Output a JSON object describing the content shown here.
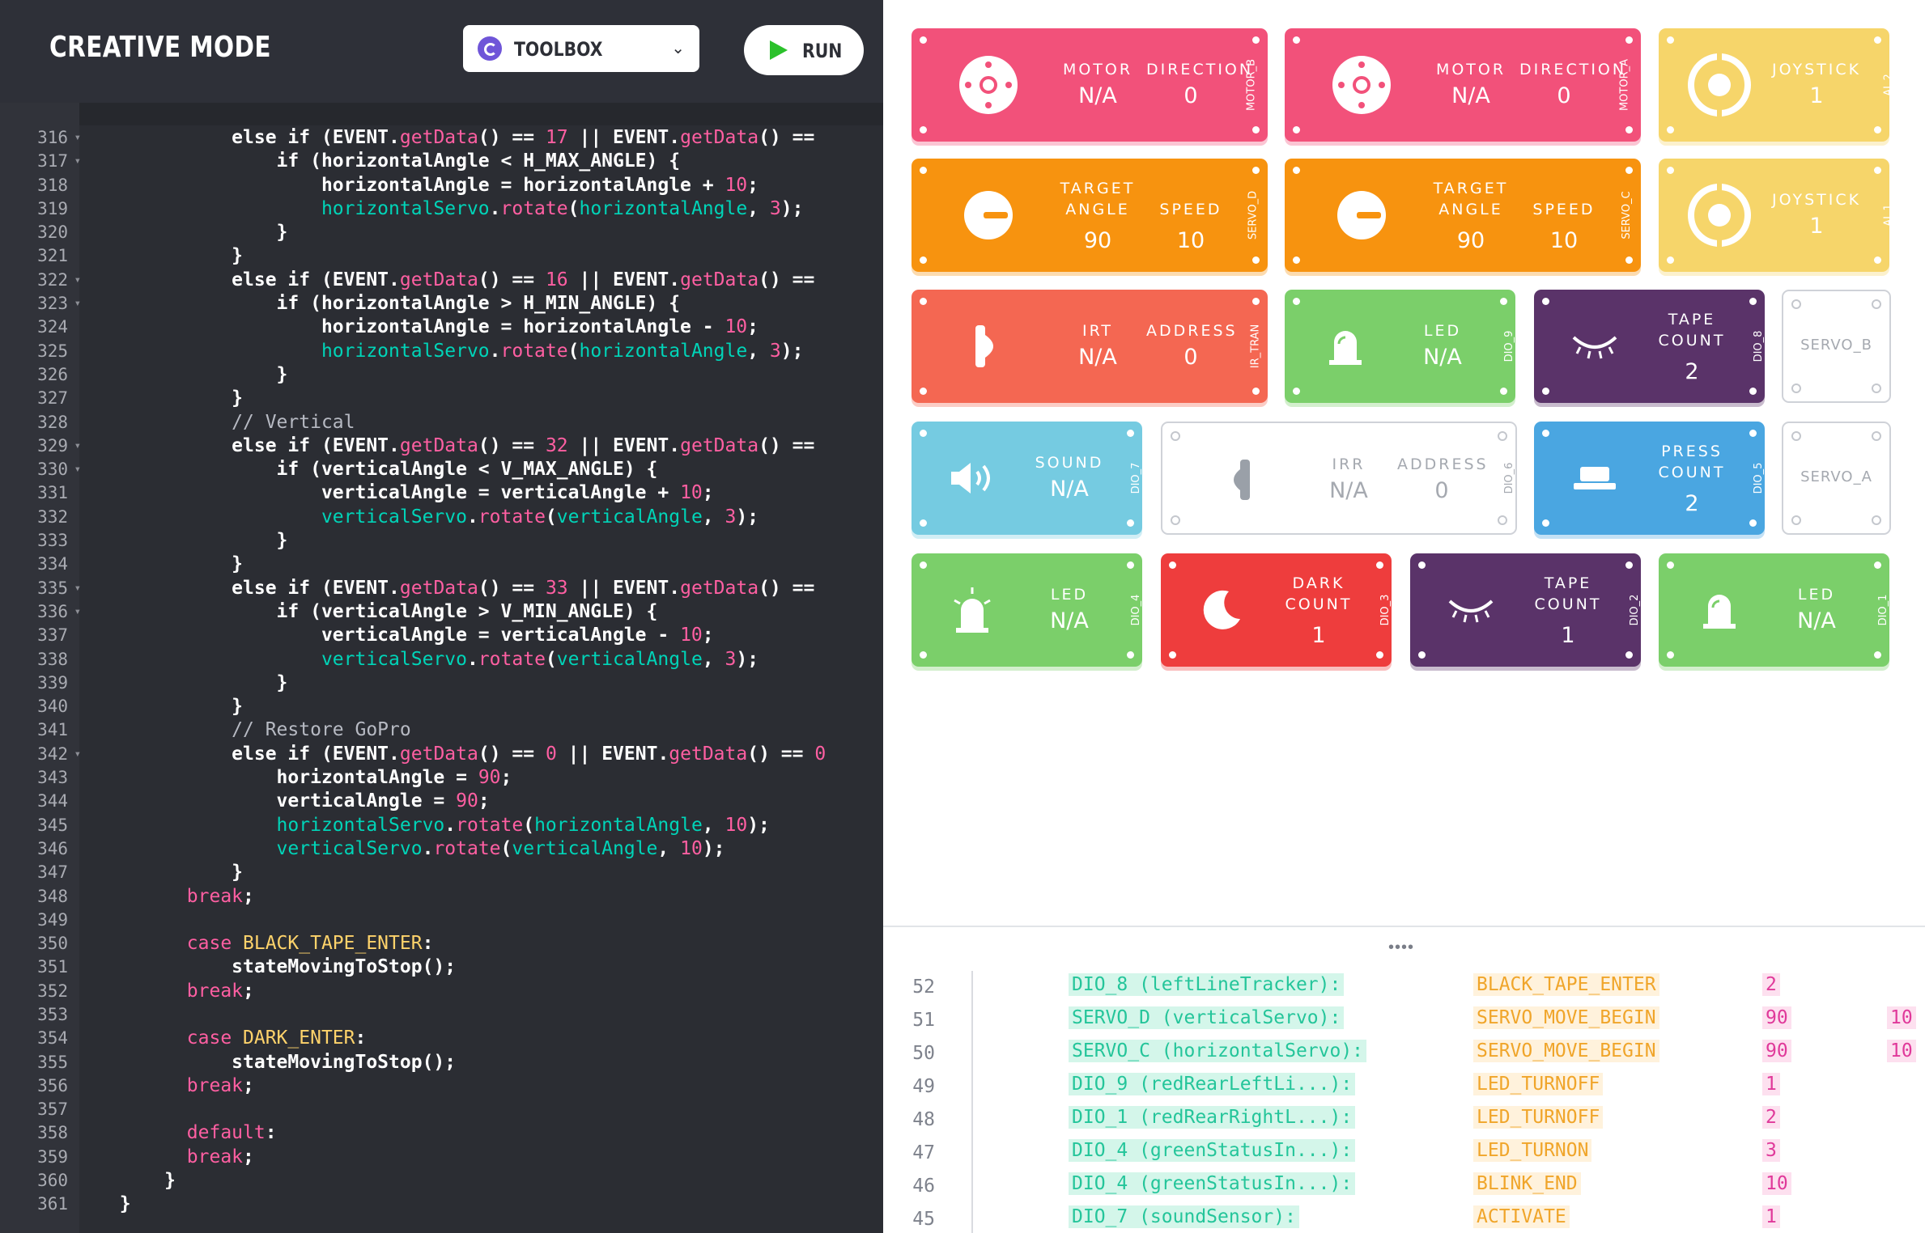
{
  "header": {
    "title": "CREATIVE MODE",
    "toolbox_label": "TOOLBOX",
    "run_label": "RUN"
  },
  "code": [
    {
      "n": "316",
      "fold": true,
      "t": [
        [
          "w",
          "            else if ("
        ],
        [
          "w",
          "EVENT"
        ],
        [
          "w",
          "."
        ],
        [
          "f",
          "getData"
        ],
        [
          "w",
          "() == "
        ],
        [
          "n",
          "17"
        ],
        [
          "w",
          " || "
        ],
        [
          "w",
          "EVENT"
        ],
        [
          "w",
          "."
        ],
        [
          "f",
          "getData"
        ],
        [
          "w",
          "() =="
        ]
      ]
    },
    {
      "n": "317",
      "fold": true,
      "t": [
        [
          "w",
          "                if (horizontalAngle < H_MAX_ANGLE) {"
        ]
      ]
    },
    {
      "n": "318",
      "t": [
        [
          "w",
          "                    horizontalAngle = horizontalAngle + "
        ],
        [
          "n",
          "10"
        ],
        [
          "w",
          ";"
        ]
      ]
    },
    {
      "n": "319",
      "t": [
        [
          "o",
          "                    horizontalServo"
        ],
        [
          "w",
          "."
        ],
        [
          "f",
          "rotate"
        ],
        [
          "w",
          "("
        ],
        [
          "o",
          "horizontalAngle"
        ],
        [
          "w",
          ", "
        ],
        [
          "n",
          "3"
        ],
        [
          "w",
          ");"
        ]
      ]
    },
    {
      "n": "320",
      "t": [
        [
          "w",
          "                }"
        ]
      ]
    },
    {
      "n": "321",
      "t": [
        [
          "w",
          "            }"
        ]
      ]
    },
    {
      "n": "322",
      "fold": true,
      "t": [
        [
          "w",
          "            else if ("
        ],
        [
          "w",
          "EVENT"
        ],
        [
          "w",
          "."
        ],
        [
          "f",
          "getData"
        ],
        [
          "w",
          "() == "
        ],
        [
          "n",
          "16"
        ],
        [
          "w",
          " || "
        ],
        [
          "w",
          "EVENT"
        ],
        [
          "w",
          "."
        ],
        [
          "f",
          "getData"
        ],
        [
          "w",
          "() =="
        ]
      ]
    },
    {
      "n": "323",
      "fold": true,
      "t": [
        [
          "w",
          "                if (horizontalAngle > H_MIN_ANGLE) {"
        ]
      ]
    },
    {
      "n": "324",
      "t": [
        [
          "w",
          "                    horizontalAngle = horizontalAngle - "
        ],
        [
          "n",
          "10"
        ],
        [
          "w",
          ";"
        ]
      ]
    },
    {
      "n": "325",
      "t": [
        [
          "o",
          "                    horizontalServo"
        ],
        [
          "w",
          "."
        ],
        [
          "f",
          "rotate"
        ],
        [
          "w",
          "("
        ],
        [
          "o",
          "horizontalAngle"
        ],
        [
          "w",
          ", "
        ],
        [
          "n",
          "3"
        ],
        [
          "w",
          ");"
        ]
      ]
    },
    {
      "n": "326",
      "t": [
        [
          "w",
          "                }"
        ]
      ]
    },
    {
      "n": "327",
      "t": [
        [
          "w",
          "            }"
        ]
      ]
    },
    {
      "n": "328",
      "t": [
        [
          "c",
          "            // Vertical"
        ]
      ]
    },
    {
      "n": "329",
      "fold": true,
      "t": [
        [
          "w",
          "            else if ("
        ],
        [
          "w",
          "EVENT"
        ],
        [
          "w",
          "."
        ],
        [
          "f",
          "getData"
        ],
        [
          "w",
          "() == "
        ],
        [
          "n",
          "32"
        ],
        [
          "w",
          " || "
        ],
        [
          "w",
          "EVENT"
        ],
        [
          "w",
          "."
        ],
        [
          "f",
          "getData"
        ],
        [
          "w",
          "() =="
        ]
      ]
    },
    {
      "n": "330",
      "fold": true,
      "t": [
        [
          "w",
          "                if (verticalAngle < V_MAX_ANGLE) {"
        ]
      ]
    },
    {
      "n": "331",
      "t": [
        [
          "w",
          "                    verticalAngle = verticalAngle + "
        ],
        [
          "n",
          "10"
        ],
        [
          "w",
          ";"
        ]
      ]
    },
    {
      "n": "332",
      "t": [
        [
          "o",
          "                    verticalServo"
        ],
        [
          "w",
          "."
        ],
        [
          "f",
          "rotate"
        ],
        [
          "w",
          "("
        ],
        [
          "o",
          "verticalAngle"
        ],
        [
          "w",
          ", "
        ],
        [
          "n",
          "3"
        ],
        [
          "w",
          ");"
        ]
      ]
    },
    {
      "n": "333",
      "t": [
        [
          "w",
          "                }"
        ]
      ]
    },
    {
      "n": "334",
      "t": [
        [
          "w",
          "            }"
        ]
      ]
    },
    {
      "n": "335",
      "fold": true,
      "t": [
        [
          "w",
          "            else if ("
        ],
        [
          "w",
          "EVENT"
        ],
        [
          "w",
          "."
        ],
        [
          "f",
          "getData"
        ],
        [
          "w",
          "() == "
        ],
        [
          "n",
          "33"
        ],
        [
          "w",
          " || "
        ],
        [
          "w",
          "EVENT"
        ],
        [
          "w",
          "."
        ],
        [
          "f",
          "getData"
        ],
        [
          "w",
          "() =="
        ]
      ]
    },
    {
      "n": "336",
      "fold": true,
      "t": [
        [
          "w",
          "                if (verticalAngle > V_MIN_ANGLE) {"
        ]
      ]
    },
    {
      "n": "337",
      "t": [
        [
          "w",
          "                    verticalAngle = verticalAngle - "
        ],
        [
          "n",
          "10"
        ],
        [
          "w",
          ";"
        ]
      ]
    },
    {
      "n": "338",
      "t": [
        [
          "o",
          "                    verticalServo"
        ],
        [
          "w",
          "."
        ],
        [
          "f",
          "rotate"
        ],
        [
          "w",
          "("
        ],
        [
          "o",
          "verticalAngle"
        ],
        [
          "w",
          ", "
        ],
        [
          "n",
          "3"
        ],
        [
          "w",
          ");"
        ]
      ]
    },
    {
      "n": "339",
      "t": [
        [
          "w",
          "                }"
        ]
      ]
    },
    {
      "n": "340",
      "t": [
        [
          "w",
          "            }"
        ]
      ]
    },
    {
      "n": "341",
      "t": [
        [
          "c",
          "            // Restore GoPro"
        ]
      ]
    },
    {
      "n": "342",
      "fold": true,
      "t": [
        [
          "w",
          "            else if ("
        ],
        [
          "w",
          "EVENT"
        ],
        [
          "w",
          "."
        ],
        [
          "f",
          "getData"
        ],
        [
          "w",
          "() == "
        ],
        [
          "n",
          "0"
        ],
        [
          "w",
          " || "
        ],
        [
          "w",
          "EVENT"
        ],
        [
          "w",
          "."
        ],
        [
          "f",
          "getData"
        ],
        [
          "w",
          "() == "
        ],
        [
          "n",
          "0"
        ]
      ]
    },
    {
      "n": "343",
      "t": [
        [
          "w",
          "                horizontalAngle = "
        ],
        [
          "n",
          "90"
        ],
        [
          "w",
          ";"
        ]
      ]
    },
    {
      "n": "344",
      "t": [
        [
          "w",
          "                verticalAngle = "
        ],
        [
          "n",
          "90"
        ],
        [
          "w",
          ";"
        ]
      ]
    },
    {
      "n": "345",
      "t": [
        [
          "o",
          "                horizontalServo"
        ],
        [
          "w",
          "."
        ],
        [
          "f",
          "rotate"
        ],
        [
          "w",
          "("
        ],
        [
          "o",
          "horizontalAngle"
        ],
        [
          "w",
          ", "
        ],
        [
          "n",
          "10"
        ],
        [
          "w",
          ");"
        ]
      ]
    },
    {
      "n": "346",
      "t": [
        [
          "o",
          "                verticalServo"
        ],
        [
          "w",
          "."
        ],
        [
          "f",
          "rotate"
        ],
        [
          "w",
          "("
        ],
        [
          "o",
          "verticalAngle"
        ],
        [
          "w",
          ", "
        ],
        [
          "n",
          "10"
        ],
        [
          "w",
          ");"
        ]
      ]
    },
    {
      "n": "347",
      "t": [
        [
          "w",
          "            }"
        ]
      ]
    },
    {
      "n": "348",
      "t": [
        [
          "k",
          "        break"
        ],
        [
          "w",
          ";"
        ]
      ]
    },
    {
      "n": "349",
      "t": [
        [
          "w",
          ""
        ]
      ]
    },
    {
      "n": "350",
      "t": [
        [
          "k",
          "        case "
        ],
        [
          "y",
          "BLACK_TAPE_ENTER"
        ],
        [
          "w",
          ":"
        ]
      ]
    },
    {
      "n": "351",
      "t": [
        [
          "w",
          "            stateMovingToStop();"
        ]
      ]
    },
    {
      "n": "352",
      "t": [
        [
          "k",
          "        break"
        ],
        [
          "w",
          ";"
        ]
      ]
    },
    {
      "n": "353",
      "t": [
        [
          "w",
          ""
        ]
      ]
    },
    {
      "n": "354",
      "t": [
        [
          "k",
          "        case "
        ],
        [
          "y",
          "DARK_ENTER"
        ],
        [
          "w",
          ":"
        ]
      ]
    },
    {
      "n": "355",
      "t": [
        [
          "w",
          "            stateMovingToStop();"
        ]
      ]
    },
    {
      "n": "356",
      "t": [
        [
          "k",
          "        break"
        ],
        [
          "w",
          ";"
        ]
      ]
    },
    {
      "n": "357",
      "t": [
        [
          "w",
          ""
        ]
      ]
    },
    {
      "n": "358",
      "t": [
        [
          "k",
          "        default"
        ],
        [
          "w",
          ":"
        ]
      ]
    },
    {
      "n": "359",
      "t": [
        [
          "k",
          "        break"
        ],
        [
          "w",
          ";"
        ]
      ]
    },
    {
      "n": "360",
      "t": [
        [
          "w",
          "      }"
        ]
      ]
    },
    {
      "n": "361",
      "t": [
        [
          "w",
          "  }"
        ]
      ]
    }
  ],
  "blocks": {
    "motor_b": {
      "l1": "MOTOR",
      "v1": "N/A",
      "l2": "DIRECTION",
      "v2": "0",
      "port": "MOTOR_B",
      "color": "#f2517a"
    },
    "motor_a": {
      "l1": "MOTOR",
      "v1": "N/A",
      "l2": "DIRECTION",
      "v2": "0",
      "port": "MOTOR_A",
      "color": "#f2517a"
    },
    "joystick_2": {
      "l1": "JOYSTICK",
      "v1": "1",
      "port": "AI_2",
      "color": "#f6d56a"
    },
    "servo_d": {
      "l1": "TARGET\nANGLE",
      "v1": "90",
      "l2": "SPEED",
      "v2": "10",
      "port": "SERVO_D",
      "color": "#f7930f"
    },
    "servo_c": {
      "l1": "TARGET\nANGLE",
      "v1": "90",
      "l2": "SPEED",
      "v2": "10",
      "port": "SERVO_C",
      "color": "#f7930f"
    },
    "joystick_1": {
      "l1": "JOYSTICK",
      "v1": "1",
      "port": "AI_1",
      "color": "#f6d56a"
    },
    "irt": {
      "l1": "IRT",
      "v1": "N/A",
      "l2": "ADDRESS",
      "v2": "0",
      "port": "IR_TRAN",
      "color": "#f46752"
    },
    "led_9": {
      "l1": "LED",
      "v1": "N/A",
      "port": "DIO_9",
      "color": "#7bcf6a"
    },
    "tape_8": {
      "l1": "TAPE\nCOUNT",
      "v1": "2",
      "port": "DIO_8",
      "color": "#5a3369"
    },
    "servo_b": {
      "l1": "SERVO_B"
    },
    "sound_7": {
      "l1": "SOUND",
      "v1": "N/A",
      "port": "DIO_7",
      "color": "#75cbe1"
    },
    "irr_6": {
      "l1": "IRR",
      "v1": "N/A",
      "l2": "ADDRESS",
      "v2": "0",
      "port": "DIO_6"
    },
    "press_5": {
      "l1": "PRESS\nCOUNT",
      "v1": "2",
      "port": "DIO_5",
      "color": "#4aa6e1"
    },
    "servo_a": {
      "l1": "SERVO_A"
    },
    "led_4": {
      "l1": "LED",
      "v1": "N/A",
      "port": "DIO_4",
      "color": "#7bcf6a"
    },
    "dark_3": {
      "l1": "DARK\nCOUNT",
      "v1": "1",
      "port": "DIO_3",
      "color": "#ee3d3d"
    },
    "tape_2": {
      "l1": "TAPE\nCOUNT",
      "v1": "1",
      "port": "DIO_2",
      "color": "#5a3369"
    },
    "led_1": {
      "l1": "LED",
      "v1": "N/A",
      "port": "DIO_1",
      "color": "#7bcf6a"
    }
  },
  "log": [
    {
      "n": "52",
      "pin": "DIO_8 (leftLineTracker):",
      "ev": "BLACK_TAPE_ENTER",
      "v1": "2",
      "v2": ""
    },
    {
      "n": "51",
      "pin": "SERVO_D (verticalServo):",
      "ev": "SERVO_MOVE_BEGIN",
      "v1": "90",
      "v2": "10"
    },
    {
      "n": "50",
      "pin": "SERVO_C (horizontalServo):",
      "ev": "SERVO_MOVE_BEGIN",
      "v1": "90",
      "v2": "10"
    },
    {
      "n": "49",
      "pin": "DIO_9 (redRearLeftLi...):",
      "ev": "LED_TURNOFF",
      "v1": "1",
      "v2": ""
    },
    {
      "n": "48",
      "pin": "DIO_1 (redRearRightL...):",
      "ev": "LED_TURNOFF",
      "v1": "2",
      "v2": ""
    },
    {
      "n": "47",
      "pin": "DIO_4 (greenStatusIn...):",
      "ev": "LED_TURNON",
      "v1": "3",
      "v2": ""
    },
    {
      "n": "46",
      "pin": "DIO_4 (greenStatusIn...):",
      "ev": "BLINK_END",
      "v1": "10",
      "v2": ""
    },
    {
      "n": "45",
      "pin": "DIO_7 (soundSensor):",
      "ev": "ACTIVATE",
      "v1": "1",
      "v2": ""
    }
  ],
  "log_handle": "••••"
}
